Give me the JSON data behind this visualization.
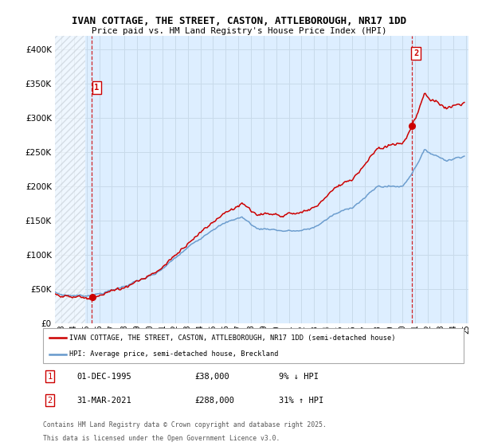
{
  "title": "IVAN COTTAGE, THE STREET, CASTON, ATTLEBOROUGH, NR17 1DD",
  "subtitle": "Price paid vs. HM Land Registry's House Price Index (HPI)",
  "sale1_date": "01-DEC-1995",
  "sale1_price": 38000,
  "sale1_label": "9% ↓ HPI",
  "sale1_x": 1995.92,
  "sale2_date": "31-MAR-2021",
  "sale2_price": 288000,
  "sale2_label": "31% ↑ HPI",
  "sale2_x": 2021.25,
  "legend_line1": "IVAN COTTAGE, THE STREET, CASTON, ATTLEBOROUGH, NR17 1DD (semi-detached house)",
  "legend_line2": "HPI: Average price, semi-detached house, Breckland",
  "footer1": "Contains HM Land Registry data © Crown copyright and database right 2025.",
  "footer2": "This data is licensed under the Open Government Licence v3.0.",
  "red_color": "#cc0000",
  "blue_color": "#6699cc",
  "grid_color": "#c8daea",
  "bg_color": "#ddeeff",
  "hatch_color": "#c0c8d0",
  "ylim_max": 420000,
  "xlim_min": 1993.0,
  "xlim_max": 2025.7
}
